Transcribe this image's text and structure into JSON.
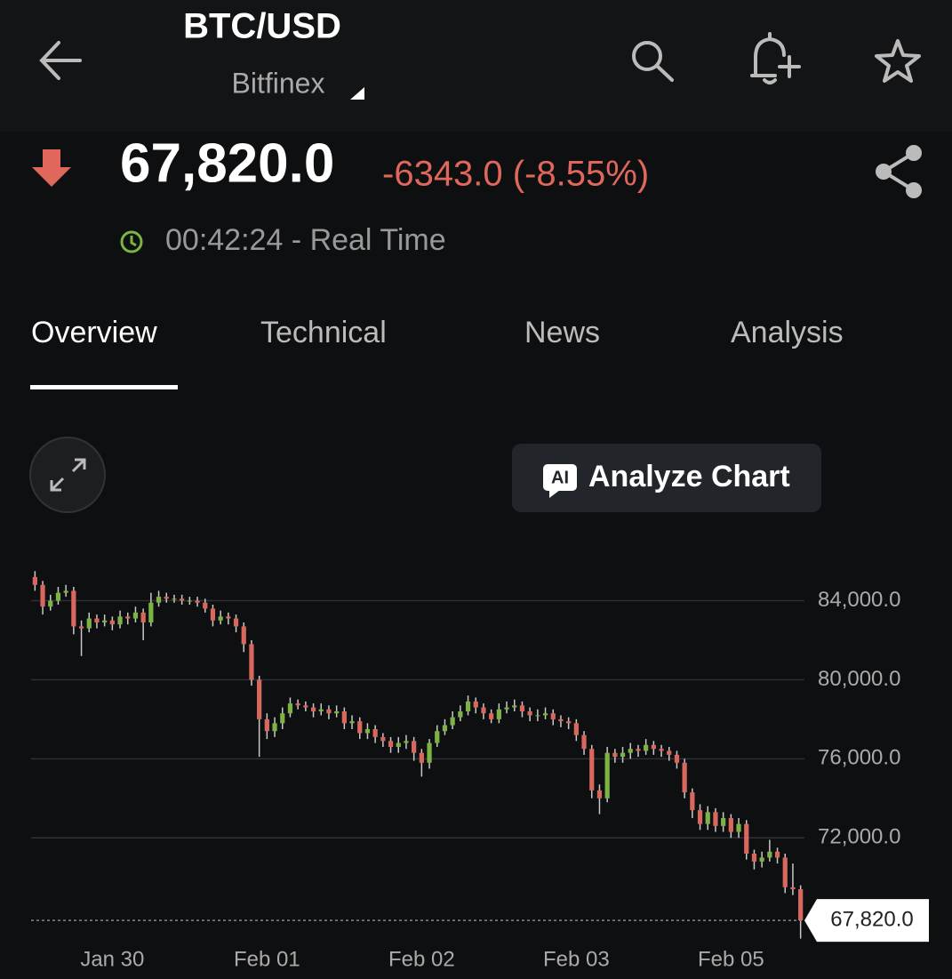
{
  "header": {
    "title": "BTC/USD",
    "exchange": "Bitfinex"
  },
  "quote": {
    "price": "67,820.0",
    "change": "-6343.0 (-8.55%)",
    "time": "00:42:24 - Real Time"
  },
  "tabs": [
    "Overview",
    "Technical",
    "News",
    "Analysis"
  ],
  "button": {
    "icon_text": "AI",
    "label": "Analyze Chart"
  },
  "chart_data": {
    "type": "candlestick",
    "up_color": "#7cb342",
    "down_color": "#d9675d",
    "grid": true,
    "ylim": [
      66700,
      85600
    ],
    "yticks": [
      {
        "value": 72000,
        "label": "72,000.0"
      },
      {
        "value": 76000,
        "label": "76,000.0"
      },
      {
        "value": 80000,
        "label": "80,000.0"
      },
      {
        "value": 84000,
        "label": "84,000.0"
      }
    ],
    "last_value": {
      "value": 67820,
      "label": "67,820.0"
    },
    "categories": [
      null,
      null,
      null,
      null,
      null,
      null,
      null,
      null,
      null,
      null,
      "Jan 30",
      null,
      null,
      null,
      null,
      null,
      null,
      null,
      null,
      null,
      null,
      null,
      null,
      null,
      null,
      null,
      null,
      null,
      null,
      null,
      "Feb 01",
      null,
      null,
      null,
      null,
      null,
      null,
      null,
      null,
      null,
      null,
      null,
      null,
      null,
      null,
      null,
      null,
      null,
      null,
      null,
      "Feb 02",
      null,
      null,
      null,
      null,
      null,
      null,
      null,
      null,
      null,
      null,
      null,
      null,
      null,
      null,
      null,
      null,
      null,
      null,
      null,
      "Feb 03",
      null,
      null,
      null,
      null,
      null,
      null,
      null,
      null,
      null,
      null,
      null,
      null,
      null,
      null,
      null,
      null,
      null,
      null,
      null,
      "Feb 05",
      null,
      null,
      null,
      null,
      null,
      null,
      null,
      null,
      null
    ],
    "open": [
      85200,
      84800,
      83700,
      84000,
      84400,
      84500,
      82700,
      82600,
      83100,
      82900,
      83000,
      82800,
      83200,
      83100,
      83400,
      82900,
      83900,
      84200,
      84100,
      84100,
      84000,
      84000,
      83900,
      83600,
      83000,
      83200,
      83100,
      82700,
      81800,
      80000,
      78000,
      77400,
      77800,
      78300,
      78800,
      78700,
      78600,
      78400,
      78500,
      78300,
      78400,
      77800,
      77900,
      77300,
      77500,
      77100,
      76900,
      76600,
      76800,
      76900,
      76300,
      75800,
      76800,
      77400,
      77700,
      78100,
      78400,
      78900,
      78600,
      78300,
      78000,
      78500,
      78600,
      78700,
      78400,
      78200,
      78200,
      78300,
      78000,
      77900,
      77800,
      77200,
      76500,
      74400,
      74000,
      76300,
      76100,
      76300,
      76500,
      76400,
      76700,
      76500,
      76400,
      76200,
      75800,
      74300,
      73400,
      72700,
      73300,
      72600,
      73000,
      72300,
      72700,
      71200,
      70800,
      71000,
      71300,
      71000,
      69500,
      69400
    ],
    "high": [
      85500,
      85000,
      84300,
      84700,
      84800,
      84700,
      83000,
      83400,
      83300,
      83300,
      83200,
      83500,
      83400,
      83700,
      83600,
      84400,
      84500,
      84400,
      84300,
      84300,
      84200,
      84200,
      84100,
      83800,
      83500,
      83400,
      83300,
      82900,
      82000,
      80200,
      78300,
      78100,
      78600,
      79100,
      79000,
      78900,
      78800,
      78800,
      78700,
      78700,
      78600,
      78200,
      78100,
      77800,
      77700,
      77300,
      77100,
      77100,
      77200,
      77100,
      76500,
      77000,
      77700,
      78000,
      78400,
      78700,
      79200,
      79100,
      78800,
      78500,
      78800,
      78900,
      79000,
      78900,
      78600,
      78500,
      78600,
      78500,
      78200,
      78100,
      78000,
      77400,
      76700,
      74700,
      76600,
      76500,
      76600,
      76800,
      76700,
      77000,
      76900,
      76700,
      76600,
      76400,
      76000,
      74500,
      73700,
      73600,
      73500,
      73300,
      73200,
      73000,
      72900,
      71400,
      71300,
      71900,
      71500,
      71200,
      70700,
      69600
    ],
    "low": [
      84500,
      83300,
      83500,
      83800,
      84200,
      82300,
      81200,
      82400,
      82600,
      82700,
      82500,
      82600,
      82800,
      82900,
      82000,
      82700,
      83700,
      83900,
      83900,
      83800,
      83800,
      83700,
      83400,
      82700,
      82800,
      82800,
      82400,
      81400,
      79700,
      76100,
      77000,
      77100,
      77500,
      78100,
      78500,
      78400,
      78100,
      78200,
      78000,
      78100,
      77500,
      77500,
      77000,
      77000,
      76800,
      76600,
      76300,
      76300,
      76500,
      75900,
      75100,
      75500,
      76600,
      77200,
      77500,
      77900,
      78200,
      78300,
      78000,
      77800,
      77800,
      78300,
      78400,
      78100,
      77900,
      77900,
      78000,
      77700,
      77600,
      77500,
      76900,
      76200,
      74000,
      73200,
      73800,
      75800,
      75800,
      76000,
      76100,
      76200,
      76200,
      76100,
      75900,
      75500,
      74000,
      73000,
      72400,
      72400,
      72300,
      72300,
      72000,
      72000,
      70900,
      70400,
      70500,
      70800,
      70700,
      69200,
      69100,
      66900
    ],
    "close": [
      84800,
      83700,
      84000,
      84400,
      84500,
      82700,
      82600,
      83100,
      82900,
      83000,
      82800,
      83200,
      83100,
      83400,
      82900,
      83900,
      84200,
      84100,
      84100,
      84000,
      84000,
      83900,
      83600,
      83000,
      83200,
      83100,
      82700,
      81800,
      80000,
      78000,
      77400,
      77800,
      78300,
      78800,
      78700,
      78600,
      78400,
      78500,
      78300,
      78400,
      77800,
      77900,
      77300,
      77500,
      77100,
      76900,
      76600,
      76800,
      76900,
      76300,
      75800,
      76800,
      77400,
      77700,
      78100,
      78400,
      78900,
      78600,
      78300,
      78000,
      78500,
      78600,
      78700,
      78400,
      78200,
      78200,
      78300,
      78000,
      77900,
      77800,
      77200,
      76500,
      74400,
      74000,
      76300,
      76100,
      76300,
      76500,
      76400,
      76700,
      76500,
      76400,
      76200,
      75800,
      74300,
      73400,
      72700,
      73300,
      72600,
      73000,
      72300,
      72700,
      71200,
      70800,
      71000,
      71300,
      71000,
      69500,
      69400,
      67820
    ]
  }
}
